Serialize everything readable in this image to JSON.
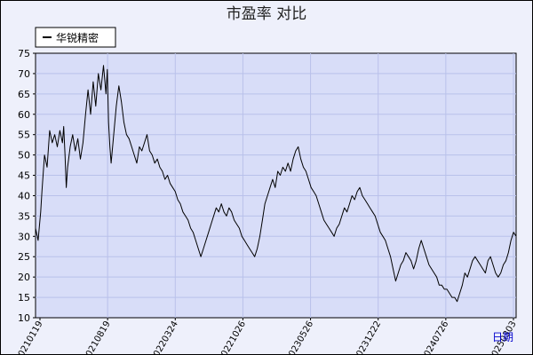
{
  "chart_data": {
    "type": "line",
    "title": "市盈率  对比",
    "xlabel": "日期",
    "ylabel": "",
    "legend_position": "top-left",
    "grid": true,
    "ylim": [
      10,
      75
    ],
    "yticks": [
      10,
      15,
      20,
      25,
      30,
      35,
      40,
      45,
      50,
      55,
      60,
      65,
      70,
      75
    ],
    "xticks": [
      "20210119",
      "20210819",
      "20220324",
      "20221026",
      "20230526",
      "20231222",
      "20240726",
      "20250303"
    ],
    "series": [
      {
        "name": "华锐精密",
        "color": "#000000",
        "points": [
          [
            0,
            32
          ],
          [
            2,
            29
          ],
          [
            4,
            36
          ],
          [
            5,
            41
          ],
          [
            7,
            50
          ],
          [
            9,
            47
          ],
          [
            11,
            56
          ],
          [
            13,
            53
          ],
          [
            15,
            55
          ],
          [
            17,
            52
          ],
          [
            19,
            56
          ],
          [
            21,
            53
          ],
          [
            22,
            57
          ],
          [
            23,
            50
          ],
          [
            24,
            42
          ],
          [
            25,
            47
          ],
          [
            27,
            52
          ],
          [
            29,
            55
          ],
          [
            31,
            51
          ],
          [
            33,
            54
          ],
          [
            35,
            49
          ],
          [
            37,
            53
          ],
          [
            39,
            60
          ],
          [
            41,
            66
          ],
          [
            43,
            60
          ],
          [
            45,
            68
          ],
          [
            47,
            62
          ],
          [
            49,
            70
          ],
          [
            51,
            66
          ],
          [
            53,
            72
          ],
          [
            55,
            65
          ],
          [
            56,
            71
          ],
          [
            57,
            58
          ],
          [
            58,
            52
          ],
          [
            59,
            48
          ],
          [
            61,
            55
          ],
          [
            63,
            62
          ],
          [
            65,
            67
          ],
          [
            67,
            63
          ],
          [
            69,
            58
          ],
          [
            71,
            55
          ],
          [
            73,
            54
          ],
          [
            75,
            52
          ],
          [
            77,
            50
          ],
          [
            79,
            48
          ],
          [
            81,
            52
          ],
          [
            83,
            51
          ],
          [
            85,
            53
          ],
          [
            87,
            55
          ],
          [
            89,
            51
          ],
          [
            91,
            50
          ],
          [
            93,
            48
          ],
          [
            95,
            49
          ],
          [
            97,
            47
          ],
          [
            99,
            46
          ],
          [
            101,
            44
          ],
          [
            103,
            45
          ],
          [
            105,
            43
          ],
          [
            107,
            42
          ],
          [
            109,
            41
          ],
          [
            111,
            39
          ],
          [
            113,
            38
          ],
          [
            115,
            36
          ],
          [
            117,
            35
          ],
          [
            119,
            34
          ],
          [
            121,
            32
          ],
          [
            123,
            31
          ],
          [
            125,
            29
          ],
          [
            127,
            27
          ],
          [
            129,
            25
          ],
          [
            131,
            27
          ],
          [
            133,
            29
          ],
          [
            135,
            31
          ],
          [
            137,
            33
          ],
          [
            139,
            35
          ],
          [
            141,
            37
          ],
          [
            143,
            36
          ],
          [
            145,
            38
          ],
          [
            147,
            36
          ],
          [
            149,
            35
          ],
          [
            151,
            37
          ],
          [
            153,
            36
          ],
          [
            155,
            34
          ],
          [
            157,
            33
          ],
          [
            159,
            32
          ],
          [
            161,
            30
          ],
          [
            163,
            29
          ],
          [
            165,
            28
          ],
          [
            167,
            27
          ],
          [
            169,
            26
          ],
          [
            171,
            25
          ],
          [
            173,
            27
          ],
          [
            175,
            30
          ],
          [
            177,
            34
          ],
          [
            179,
            38
          ],
          [
            181,
            40
          ],
          [
            183,
            42
          ],
          [
            185,
            44
          ],
          [
            187,
            42
          ],
          [
            189,
            46
          ],
          [
            191,
            45
          ],
          [
            193,
            47
          ],
          [
            195,
            46
          ],
          [
            197,
            48
          ],
          [
            199,
            46
          ],
          [
            201,
            49
          ],
          [
            203,
            51
          ],
          [
            205,
            52
          ],
          [
            207,
            49
          ],
          [
            209,
            47
          ],
          [
            211,
            46
          ],
          [
            213,
            44
          ],
          [
            215,
            42
          ],
          [
            217,
            41
          ],
          [
            219,
            40
          ],
          [
            221,
            38
          ],
          [
            223,
            36
          ],
          [
            225,
            34
          ],
          [
            227,
            33
          ],
          [
            229,
            32
          ],
          [
            231,
            31
          ],
          [
            233,
            30
          ],
          [
            235,
            32
          ],
          [
            237,
            33
          ],
          [
            239,
            35
          ],
          [
            241,
            37
          ],
          [
            243,
            36
          ],
          [
            245,
            38
          ],
          [
            247,
            40
          ],
          [
            249,
            39
          ],
          [
            251,
            41
          ],
          [
            253,
            42
          ],
          [
            255,
            40
          ],
          [
            257,
            39
          ],
          [
            259,
            38
          ],
          [
            261,
            37
          ],
          [
            263,
            36
          ],
          [
            265,
            35
          ],
          [
            267,
            33
          ],
          [
            269,
            31
          ],
          [
            271,
            30
          ],
          [
            273,
            29
          ],
          [
            275,
            27
          ],
          [
            277,
            25
          ],
          [
            279,
            22
          ],
          [
            281,
            19
          ],
          [
            283,
            21
          ],
          [
            285,
            23
          ],
          [
            287,
            24
          ],
          [
            289,
            26
          ],
          [
            291,
            25
          ],
          [
            293,
            24
          ],
          [
            295,
            22
          ],
          [
            297,
            24
          ],
          [
            299,
            27
          ],
          [
            301,
            29
          ],
          [
            303,
            27
          ],
          [
            305,
            25
          ],
          [
            307,
            23
          ],
          [
            309,
            22
          ],
          [
            311,
            21
          ],
          [
            313,
            20
          ],
          [
            315,
            18
          ],
          [
            317,
            18
          ],
          [
            319,
            17
          ],
          [
            321,
            17
          ],
          [
            323,
            16
          ],
          [
            325,
            15
          ],
          [
            327,
            15
          ],
          [
            329,
            14
          ],
          [
            331,
            16
          ],
          [
            333,
            18
          ],
          [
            335,
            21
          ],
          [
            337,
            20
          ],
          [
            339,
            22
          ],
          [
            341,
            24
          ],
          [
            343,
            25
          ],
          [
            345,
            24
          ],
          [
            347,
            23
          ],
          [
            349,
            22
          ],
          [
            351,
            21
          ],
          [
            353,
            24
          ],
          [
            355,
            25
          ],
          [
            357,
            23
          ],
          [
            359,
            21
          ],
          [
            361,
            20
          ],
          [
            363,
            21
          ],
          [
            365,
            23
          ],
          [
            367,
            24
          ],
          [
            369,
            26
          ],
          [
            371,
            29
          ],
          [
            373,
            31
          ],
          [
            375,
            30
          ]
        ]
      }
    ]
  }
}
